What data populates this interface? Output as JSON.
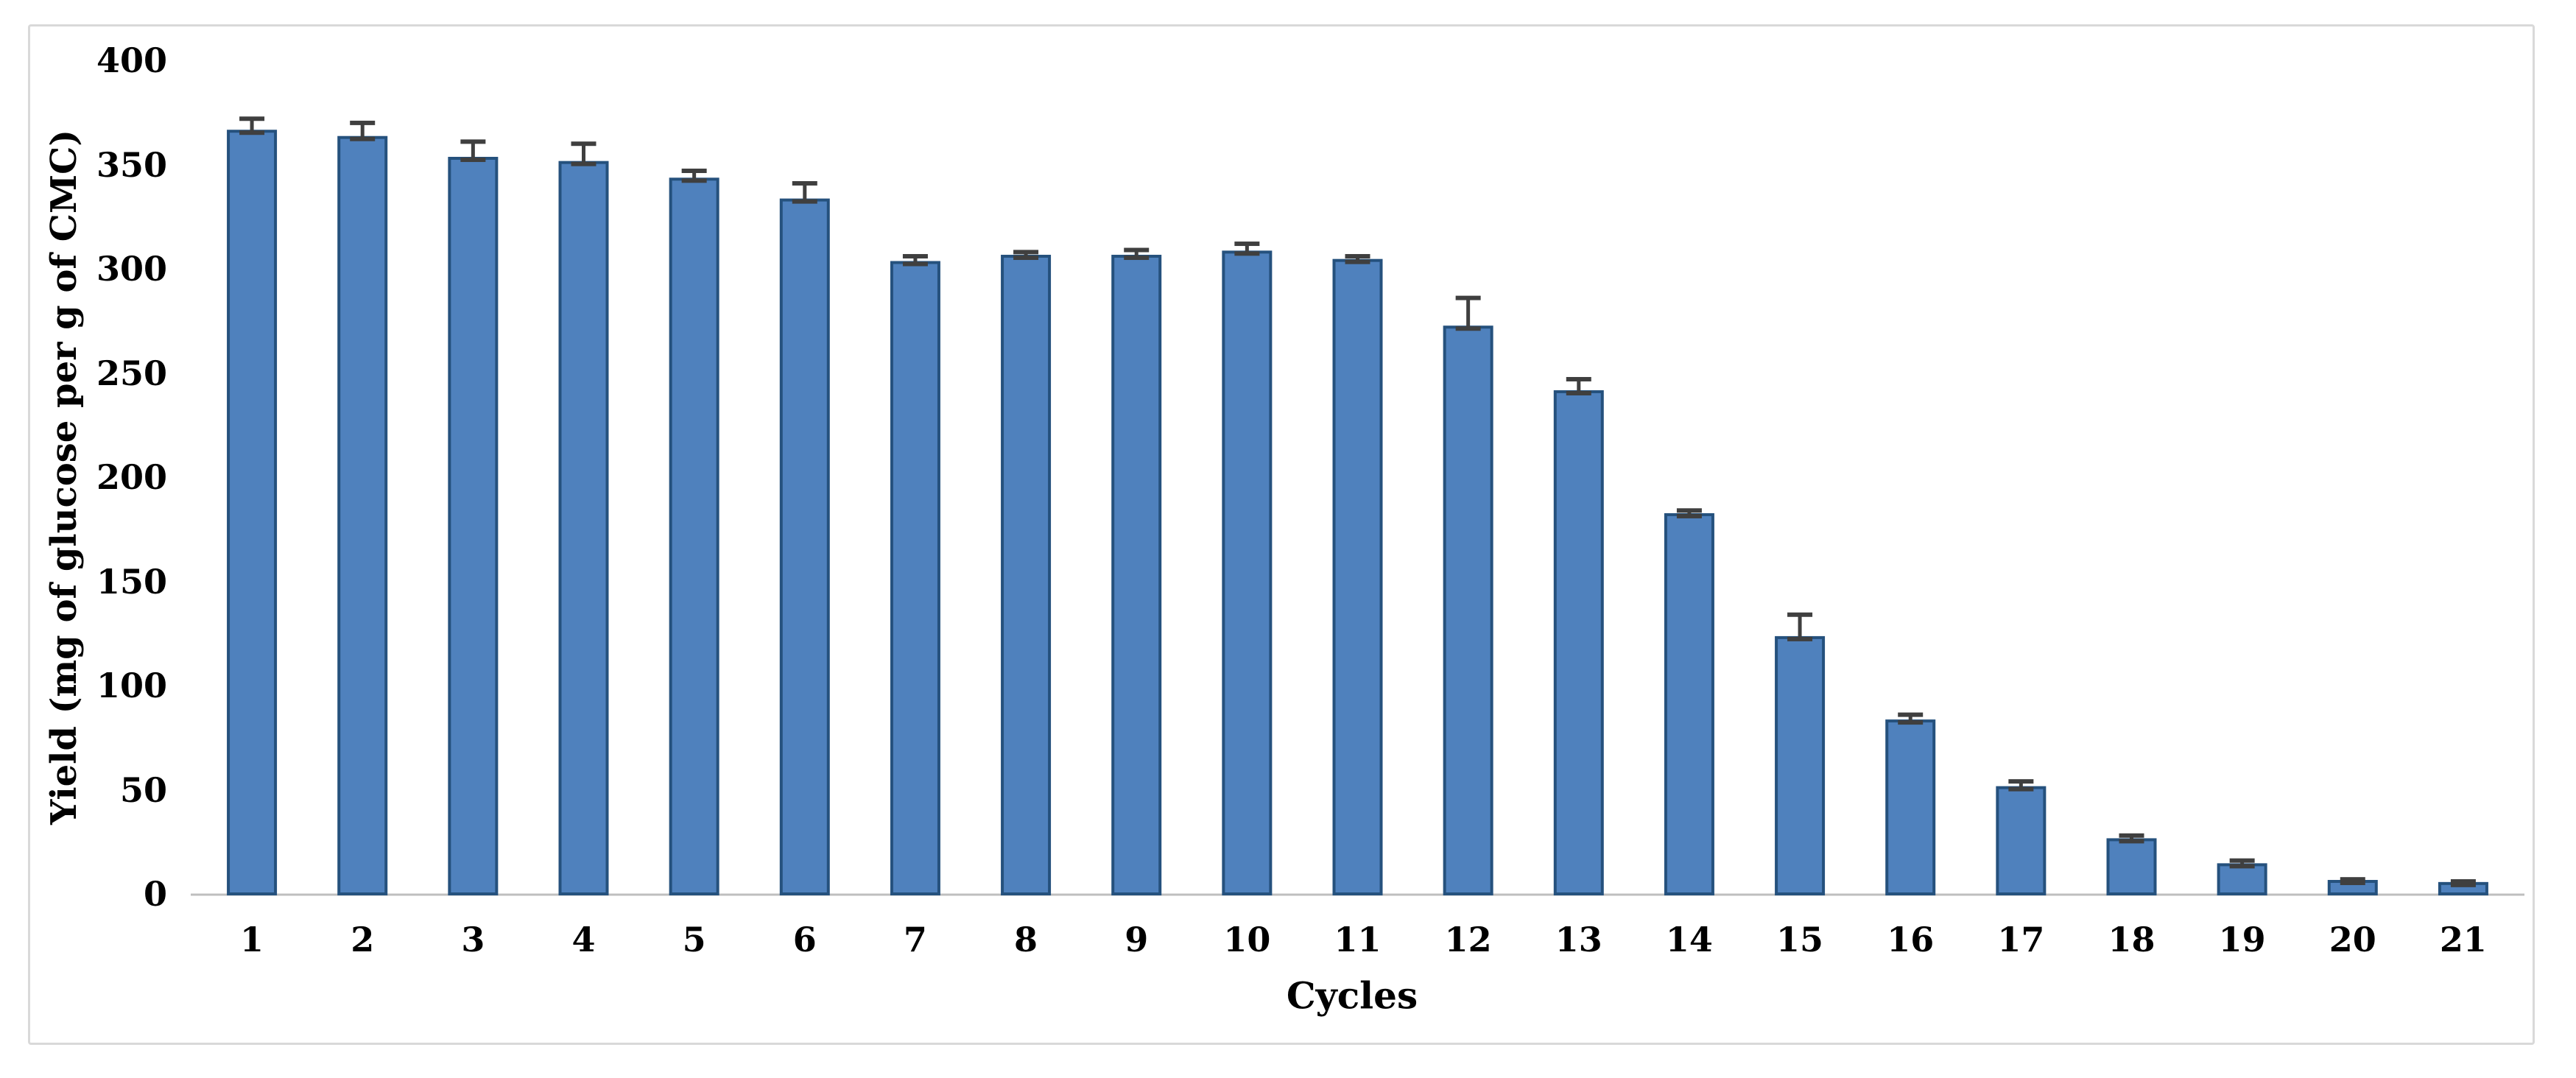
{
  "figure": {
    "background_color": "#FFFFFF",
    "frame_border_color": "#D9D9D9"
  },
  "chart_data": {
    "type": "bar",
    "title": "",
    "xlabel": "Cycles",
    "ylabel": "Yield (mg of glucose per g of CMC)",
    "categories": [
      "1",
      "2",
      "3",
      "4",
      "5",
      "6",
      "7",
      "8",
      "9",
      "10",
      "11",
      "12",
      "13",
      "14",
      "15",
      "16",
      "17",
      "18",
      "19",
      "20",
      "21"
    ],
    "values": [
      366,
      363,
      353,
      351,
      343,
      333,
      303,
      306,
      306,
      308,
      304,
      272,
      241,
      182,
      123,
      83,
      51,
      26,
      14,
      6,
      5
    ],
    "error_plus": [
      6,
      7,
      8,
      9,
      4,
      8,
      3,
      2,
      3,
      4,
      2,
      14,
      6,
      2,
      11,
      3,
      3,
      2,
      2,
      1,
      1
    ],
    "ylim": [
      0,
      400
    ],
    "yticks": [
      0,
      50,
      100,
      150,
      200,
      250,
      300,
      350,
      400
    ],
    "grid": false,
    "legend": false,
    "bar_color": "#4F81BD",
    "bar_border_color": "#25517D",
    "error_bar_color": "#3F3F3F",
    "axis_line_color": "#BFBFBF"
  }
}
